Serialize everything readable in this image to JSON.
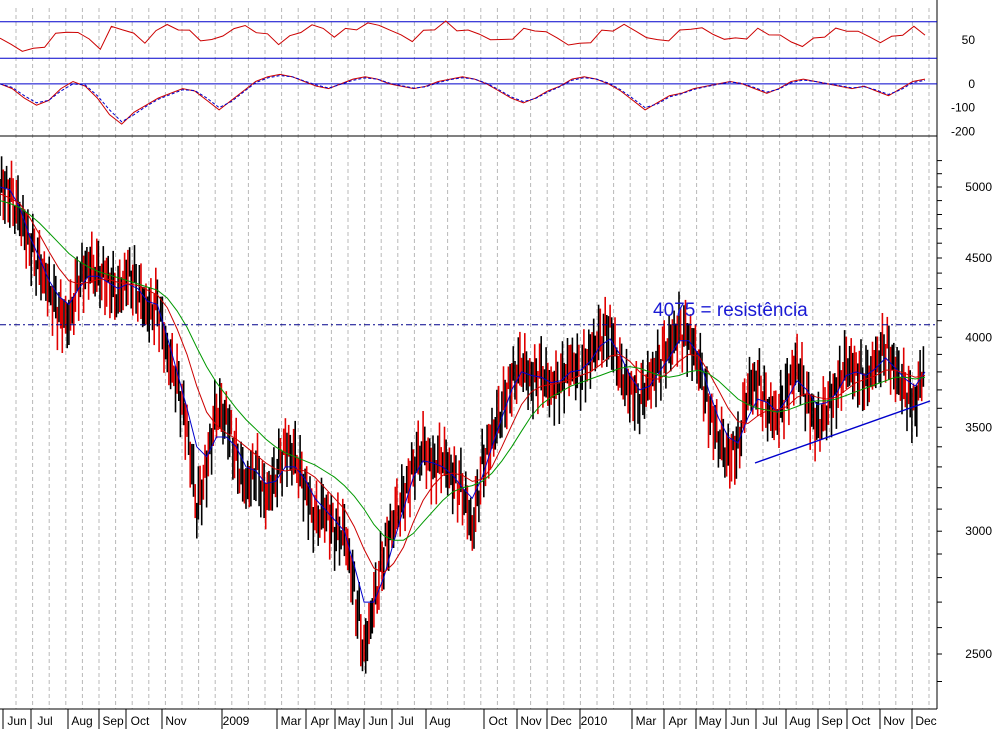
{
  "chart_data": [
    {
      "type": "line",
      "panel": "oscillator-1",
      "y_ticks": [
        50
      ],
      "levels": [
        30,
        70
      ],
      "series": [
        {
          "color": "#cc0000",
          "values": [
            52,
            44,
            40,
            38,
            45,
            55,
            60,
            58,
            50,
            42,
            62,
            64,
            55,
            48,
            60,
            66,
            63,
            58,
            52,
            48,
            56,
            62,
            65,
            60,
            54,
            48,
            52,
            60,
            66,
            62,
            55,
            60,
            64,
            66,
            68,
            60,
            55,
            50,
            58,
            64,
            68,
            62,
            60,
            56,
            52,
            48,
            54,
            60,
            62,
            58,
            52,
            46,
            44,
            50,
            58,
            62,
            66,
            60,
            54,
            48,
            52,
            58,
            64,
            62,
            56,
            52,
            50,
            54,
            60,
            58,
            54,
            48,
            44,
            50,
            56,
            60,
            62,
            58,
            54,
            48,
            52,
            58,
            62,
            58
          ]
        }
      ]
    },
    {
      "type": "line",
      "panel": "oscillator-2",
      "y_ticks": [
        0,
        -100,
        -200
      ],
      "zero_line": 0,
      "series": [
        {
          "color": "#cc0000",
          "style": "solid",
          "values": [
            0,
            -20,
            -60,
            -90,
            -70,
            -20,
            10,
            -10,
            -60,
            -130,
            -170,
            -120,
            -90,
            -60,
            -40,
            -20,
            -30,
            -70,
            -110,
            -70,
            -30,
            10,
            30,
            40,
            30,
            10,
            -10,
            -20,
            0,
            20,
            30,
            20,
            0,
            -10,
            -20,
            -10,
            10,
            20,
            30,
            20,
            0,
            -30,
            -60,
            -80,
            -60,
            -30,
            -10,
            20,
            30,
            20,
            0,
            -30,
            -70,
            -110,
            -80,
            -50,
            -40,
            -20,
            -10,
            0,
            10,
            0,
            -20,
            -40,
            -20,
            10,
            20,
            10,
            0,
            -10,
            -20,
            -10,
            -30,
            -50,
            -20,
            10,
            20
          ]
        },
        {
          "color": "#0000cc",
          "style": "dashed",
          "values": [
            0,
            -15,
            -50,
            -80,
            -70,
            -30,
            0,
            -5,
            -50,
            -110,
            -160,
            -130,
            -95,
            -65,
            -45,
            -25,
            -28,
            -60,
            -100,
            -75,
            -35,
            5,
            25,
            35,
            30,
            12,
            -5,
            -18,
            -2,
            15,
            25,
            20,
            3,
            -8,
            -18,
            -12,
            5,
            18,
            26,
            20,
            2,
            -25,
            -55,
            -75,
            -62,
            -35,
            -12,
            15,
            26,
            20,
            3,
            -25,
            -62,
            -100,
            -85,
            -55,
            -42,
            -24,
            -12,
            -2,
            8,
            2,
            -16,
            -35,
            -22,
            5,
            16,
            10,
            1,
            -8,
            -17,
            -12,
            -26,
            -45,
            -25,
            5,
            15
          ]
        }
      ]
    },
    {
      "type": "line",
      "panel": "price",
      "scale": "log",
      "y_ticks": [
        5000,
        4500,
        4000,
        3500,
        3000,
        2500
      ],
      "x_ticks": [
        "Jun",
        "Jul",
        "Aug",
        "Sep",
        "Oct",
        "Nov",
        "2009",
        "Mar",
        "Apr",
        "May",
        "Jun",
        "Jul",
        "Aug",
        "Oct",
        "Nov",
        "Dec",
        "2010",
        "Mar",
        "Apr",
        "May",
        "Jun",
        "Jul",
        "Aug",
        "Sep",
        "Oct",
        "Nov",
        "Dec"
      ],
      "resistance": {
        "value": 4075,
        "label": "4075 = resistência"
      },
      "series": [
        {
          "color": "#000000",
          "values": [
            5000,
            4950,
            4800,
            4600,
            4450,
            4300,
            4150,
            4100,
            4350,
            4450,
            4400,
            4350,
            4250,
            4400,
            4300,
            4150,
            4200,
            3900,
            3750,
            3500,
            3100,
            3300,
            3600,
            3550,
            3350,
            3200,
            3300,
            3150,
            3250,
            3400,
            3350,
            3200,
            3050,
            3100,
            3000,
            3000,
            2750,
            2500,
            2700,
            2900,
            3050,
            3150,
            3300,
            3400,
            3300,
            3350,
            3250,
            3200,
            3000,
            3300,
            3450,
            3600,
            3750,
            3850,
            3750,
            3800,
            3700,
            3750,
            3850,
            3800,
            3900,
            4000,
            4050,
            3800,
            3700,
            3650,
            3750,
            3850,
            3950,
            4050,
            4000,
            3850,
            3600,
            3450,
            3350,
            3400,
            3700,
            3750,
            3600,
            3550,
            3700,
            3850,
            3650,
            3500,
            3600,
            3700,
            3850,
            3800,
            3750,
            3850,
            3950,
            3800,
            3700,
            3600,
            3900
          ]
        },
        {
          "color": "#0000cc",
          "values": [
            5000,
            4980,
            4850,
            4650,
            4500,
            4350,
            4250,
            4200,
            4300,
            4380,
            4380,
            4340,
            4300,
            4330,
            4300,
            4220,
            4200,
            4000,
            3800,
            3600,
            3400,
            3350,
            3450,
            3450,
            3400,
            3300,
            3280,
            3220,
            3230,
            3300,
            3300,
            3240,
            3150,
            3100,
            3050,
            3000,
            2850,
            2700,
            2700,
            2800,
            2950,
            3100,
            3250,
            3330,
            3320,
            3300,
            3260,
            3200,
            3150,
            3250,
            3400,
            3550,
            3700,
            3800,
            3780,
            3770,
            3740,
            3750,
            3800,
            3810,
            3860,
            3950,
            3990,
            3900,
            3780,
            3700,
            3720,
            3800,
            3880,
            3980,
            3980,
            3900,
            3700,
            3550,
            3450,
            3420,
            3550,
            3650,
            3630,
            3580,
            3650,
            3750,
            3700,
            3620,
            3630,
            3680,
            3780,
            3800,
            3780,
            3820,
            3880,
            3820,
            3760,
            3720,
            3800
          ]
        },
        {
          "color": "#cc0000",
          "values": [
            4950,
            4920,
            4880,
            4780,
            4660,
            4540,
            4430,
            4350,
            4330,
            4340,
            4360,
            4360,
            4340,
            4330,
            4320,
            4290,
            4260,
            4180,
            4050,
            3900,
            3720,
            3580,
            3510,
            3470,
            3440,
            3400,
            3360,
            3320,
            3290,
            3280,
            3290,
            3280,
            3250,
            3200,
            3150,
            3100,
            3020,
            2920,
            2840,
            2820,
            2860,
            2930,
            3040,
            3140,
            3210,
            3260,
            3270,
            3260,
            3230,
            3240,
            3300,
            3400,
            3510,
            3620,
            3690,
            3720,
            3730,
            3740,
            3760,
            3780,
            3800,
            3840,
            3890,
            3900,
            3860,
            3800,
            3760,
            3760,
            3800,
            3860,
            3900,
            3890,
            3800,
            3700,
            3600,
            3530,
            3520,
            3560,
            3590,
            3590,
            3610,
            3660,
            3680,
            3660,
            3650,
            3660,
            3700,
            3740,
            3760,
            3780,
            3810,
            3810,
            3790,
            3770,
            3780
          ]
        },
        {
          "color": "#009900",
          "values": [
            4900,
            4880,
            4850,
            4800,
            4740,
            4670,
            4600,
            4530,
            4480,
            4440,
            4410,
            4390,
            4370,
            4350,
            4330,
            4310,
            4290,
            4240,
            4160,
            4060,
            3940,
            3830,
            3740,
            3670,
            3600,
            3540,
            3490,
            3440,
            3400,
            3370,
            3350,
            3330,
            3310,
            3280,
            3250,
            3210,
            3160,
            3100,
            3030,
            2980,
            2960,
            2960,
            2990,
            3040,
            3090,
            3140,
            3180,
            3200,
            3210,
            3230,
            3270,
            3330,
            3400,
            3480,
            3560,
            3620,
            3660,
            3690,
            3720,
            3740,
            3760,
            3780,
            3800,
            3820,
            3830,
            3820,
            3800,
            3780,
            3770,
            3780,
            3800,
            3810,
            3790,
            3750,
            3700,
            3650,
            3620,
            3600,
            3590,
            3580,
            3590,
            3610,
            3630,
            3640,
            3640,
            3650,
            3670,
            3690,
            3710,
            3730,
            3750,
            3770,
            3770,
            3760,
            3770
          ]
        }
      ]
    }
  ]
}
